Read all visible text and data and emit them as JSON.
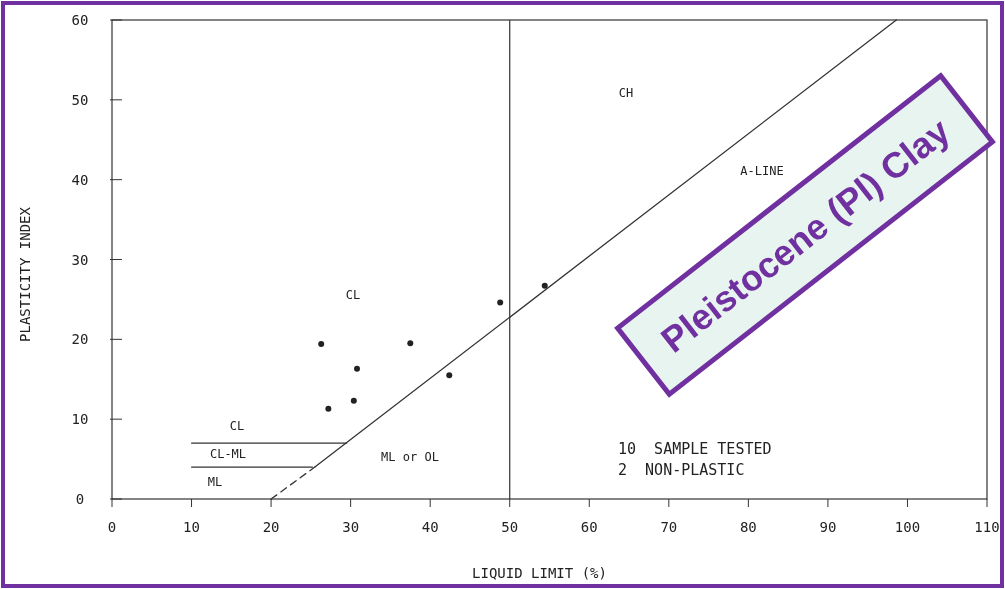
{
  "chart_data": {
    "type": "scatter",
    "xlabel": "LIQUID LIMIT (%)",
    "ylabel": "PLASTICITY INDEX",
    "xlim": [
      0,
      110
    ],
    "xticks": [
      0,
      10,
      20,
      30,
      40,
      50,
      60,
      70,
      80,
      90,
      100,
      110
    ],
    "ylim": [
      0,
      60
    ],
    "yticks": [
      0,
      10,
      20,
      30,
      40,
      50,
      60
    ],
    "grid": false,
    "marker": "circle",
    "series": [
      {
        "color": "#222222",
        "x": [
          26.3,
          27.2,
          30.8,
          30.4,
          37.5,
          42.4,
          48.8,
          54.4
        ],
        "values": [
          19.4,
          11.3,
          16.3,
          12.3,
          19.5,
          15.5,
          24.6,
          26.7
        ]
      },
      {
        "type": "line",
        "color": "#333333",
        "line_style": "dashed",
        "marker": "none",
        "x": [
          20,
          25.5
        ],
        "values": [
          0,
          4
        ]
      },
      {
        "type": "line",
        "color": "#333333",
        "line_style": "solid",
        "marker": "none",
        "x": [
          25.5,
          98.6
        ],
        "values": [
          4,
          60
        ]
      },
      {
        "type": "line",
        "color": "#333333",
        "line_style": "solid",
        "marker": "none",
        "x": [
          10,
          29.5
        ],
        "values": [
          7,
          7
        ]
      },
      {
        "type": "line",
        "color": "#333333",
        "line_style": "solid",
        "marker": "none",
        "x": [
          10,
          25.2
        ],
        "values": [
          4,
          4
        ]
      }
    ],
    "ref_lines": [
      {
        "axis": "x",
        "value": 50,
        "color": "#333333"
      }
    ],
    "annotations": [
      "CL",
      "CH",
      "A-LINE",
      "CL",
      "CL-ML",
      "ML",
      "ML or OL",
      "10  SAMPLE TESTED",
      "2  NON-PLASTIC",
      "Pleistocene (Pl) Clay"
    ]
  }
}
